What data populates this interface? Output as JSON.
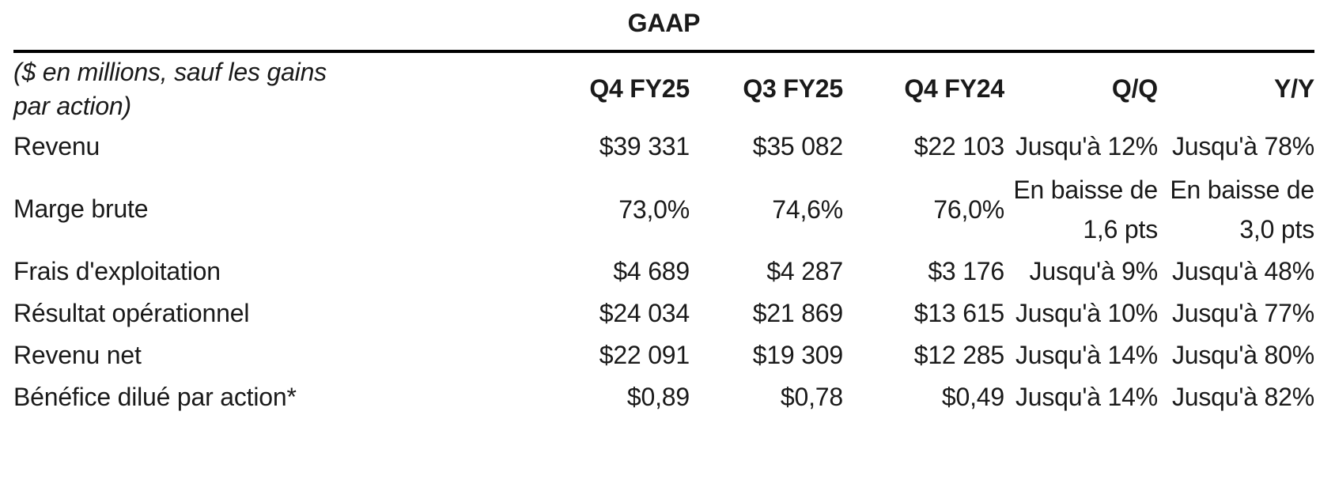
{
  "colors": {
    "text": "#1a1a1a",
    "rule": "#000000",
    "background": "#ffffff"
  },
  "table": {
    "group_header": "GAAP",
    "units_note": "($ en millions, sauf les gains\npar action)",
    "columns": [
      "Q4 FY25",
      "Q3 FY25",
      "Q4 FY24",
      "Q/Q",
      "Y/Y"
    ],
    "rows": [
      {
        "label": "Revenu",
        "values": [
          "$39 331",
          "$35 082",
          "$22 103",
          "Jusqu'à 12%",
          "Jusqu'à 78%"
        ]
      },
      {
        "label": "Marge brute",
        "values": [
          "73,0%",
          "74,6%",
          "76,0%",
          "En baisse de\n1,6 pts",
          "En baisse de\n3,0 pts"
        ]
      },
      {
        "label": "Frais d'exploitation",
        "values": [
          "$4 689",
          "$4 287",
          "$3 176",
          "Jusqu'à 9%",
          "Jusqu'à 48%"
        ]
      },
      {
        "label": "Résultat opérationnel",
        "values": [
          "$24 034",
          "$21 869",
          "$13 615",
          "Jusqu'à 10%",
          "Jusqu'à 77%"
        ]
      },
      {
        "label": "Revenu net",
        "values": [
          "$22 091",
          "$19 309",
          "$12 285",
          "Jusqu'à 14%",
          "Jusqu'à 80%"
        ]
      },
      {
        "label": "Bénéfice dilué par action*",
        "values": [
          "$0,89",
          "$0,78",
          "$0,49",
          "Jusqu'à 14%",
          "Jusqu'à 82%"
        ]
      }
    ]
  }
}
